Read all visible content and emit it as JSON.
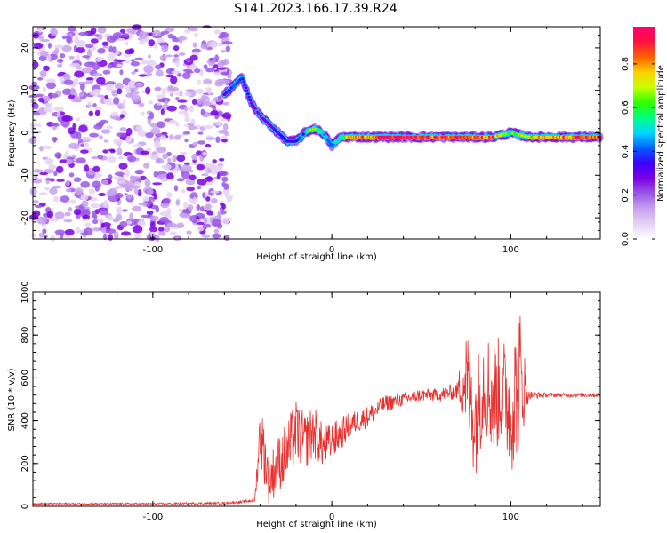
{
  "title": "S141.2023.166.17.39.R24",
  "colorbar": {
    "label": "Normalized spectral amplitude",
    "ticks": [
      "0.0",
      "0.2",
      "0.4",
      "0.6",
      "0.8"
    ],
    "tick_values": [
      0,
      0.2,
      0.4,
      0.6,
      0.8
    ],
    "range": [
      0,
      0.97
    ],
    "colors": [
      "#ffffff",
      "#e6d2f5",
      "#c8a0f0",
      "#9b59e6",
      "#7a00e6",
      "#3c00ff",
      "#0060ff",
      "#00d8ff",
      "#00ff80",
      "#30ff00",
      "#c8ff00",
      "#ffd000",
      "#ff6000",
      "#ff1040",
      "#ff0070"
    ]
  },
  "chart_data": [
    {
      "type": "heatmap",
      "title": "S141.2023.166.17.39.R24",
      "xlabel": "Height of straight line (km)",
      "ylabel": "Frequency (Hz)",
      "xlim": [
        -167,
        150
      ],
      "ylim": [
        -25,
        25
      ],
      "x_ticks": [
        "-100",
        "0",
        "100"
      ],
      "y_ticks": [
        "-20",
        "-10",
        "0",
        "10",
        "20"
      ],
      "noise_region_x": [
        -167,
        -60
      ],
      "ridge": {
        "x": [
          -60,
          -55,
          -50,
          -45,
          -40,
          -35,
          -30,
          -25,
          -20,
          -15,
          -10,
          -5,
          0,
          5,
          10,
          20,
          30,
          40,
          50,
          60,
          70,
          80,
          90,
          100,
          110,
          120,
          130,
          140,
          150
        ],
        "y": [
          9,
          11,
          13,
          7,
          4,
          2,
          0,
          -2,
          -2,
          0,
          1,
          0,
          -3,
          -1,
          -1,
          -1,
          -1,
          -1,
          -1,
          -1,
          -1,
          -1,
          -1,
          0,
          -1,
          -1,
          -1,
          -1,
          -1
        ],
        "amplitude": [
          0.35,
          0.4,
          0.4,
          0.3,
          0.25,
          0.3,
          0.3,
          0.35,
          0.35,
          0.45,
          0.75,
          0.5,
          0.45,
          0.55,
          0.8,
          0.85,
          0.95,
          0.95,
          0.9,
          0.9,
          0.9,
          0.85,
          0.85,
          0.6,
          0.75,
          0.8,
          0.85,
          0.9,
          0.9
        ]
      }
    },
    {
      "type": "line",
      "xlabel": "Height of straight line (km)",
      "ylabel": "SNR (10 * v/v)",
      "xlim": [
        -167,
        150
      ],
      "ylim": [
        0,
        1000
      ],
      "x_ticks": [
        "-100",
        "0",
        "100"
      ],
      "y_ticks": [
        "0",
        "200",
        "400",
        "600",
        "800",
        "1000"
      ],
      "series": [
        {
          "color": "#e8302e",
          "x": [
            -167,
            -100,
            -60,
            -50,
            -43,
            -40,
            -35,
            -30,
            -25,
            -20,
            -15,
            -10,
            -5,
            0,
            10,
            20,
            30,
            40,
            50,
            60,
            70,
            75,
            80,
            85,
            90,
            95,
            100,
            105,
            110,
            120,
            130,
            140,
            150
          ],
          "y": [
            12,
            12,
            15,
            20,
            30,
            350,
            120,
            200,
            250,
            350,
            300,
            350,
            280,
            300,
            380,
            420,
            480,
            500,
            520,
            520,
            540,
            600,
            400,
            600,
            500,
            550,
            450,
            600,
            520,
            520,
            520,
            520,
            520
          ],
          "noise_amplitude": [
            4,
            4,
            5,
            6,
            10,
            150,
            120,
            130,
            150,
            150,
            130,
            130,
            100,
            90,
            60,
            50,
            40,
            30,
            30,
            30,
            40,
            250,
            280,
            250,
            280,
            250,
            300,
            350,
            20,
            10,
            10,
            10,
            10
          ]
        }
      ]
    }
  ]
}
